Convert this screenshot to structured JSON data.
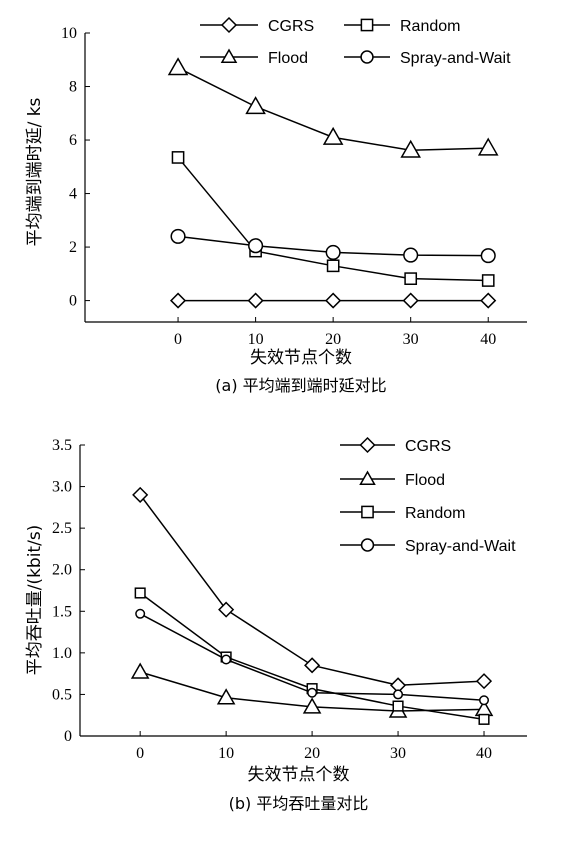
{
  "chart_data": [
    {
      "type": "line",
      "caption": "(a) 平均端到端时延对比",
      "xlabel": "失效节点个数",
      "ylabel": "平均端到端时延/ ks",
      "x": [
        0,
        10,
        20,
        30,
        40
      ],
      "xlim": [
        -12,
        45
      ],
      "ylim": [
        -0.8,
        10
      ],
      "yticks": [
        "0",
        "2",
        "4",
        "6",
        "8",
        "10"
      ],
      "xticks": [
        "0",
        "10",
        "20",
        "30",
        "40"
      ],
      "legend_placement": "top",
      "series": [
        {
          "name": "CGRS",
          "marker": "diamond",
          "values": [
            0,
            0,
            0,
            0,
            0
          ]
        },
        {
          "name": "Random",
          "marker": "square",
          "values": [
            5.35,
            1.85,
            1.3,
            0.82,
            0.75
          ]
        },
        {
          "name": "Flood",
          "marker": "triangle",
          "values": [
            8.7,
            7.25,
            6.1,
            5.62,
            5.7
          ]
        },
        {
          "name": "Spray-and-Wait",
          "marker": "circle",
          "values": [
            2.4,
            2.05,
            1.8,
            1.7,
            1.68
          ]
        }
      ]
    },
    {
      "type": "line",
      "caption": "(b) 平均吞吐量对比",
      "xlabel": "失效节点个数",
      "ylabel": "平均吞吐量/(kbit/s)",
      "x": [
        0,
        10,
        20,
        30,
        40
      ],
      "xlim": [
        -7,
        45
      ],
      "ylim": [
        0,
        3.5
      ],
      "yticks": [
        "0",
        "0.5",
        "1.0",
        "1.5",
        "2.0",
        "2.5",
        "3.0",
        "3.5"
      ],
      "xticks": [
        "0",
        "10",
        "20",
        "30",
        "40"
      ],
      "legend_placement": "top-right",
      "series": [
        {
          "name": "CGRS",
          "marker": "diamond",
          "values": [
            2.9,
            1.52,
            0.85,
            0.61,
            0.66
          ]
        },
        {
          "name": "Flood",
          "marker": "triangle",
          "values": [
            0.77,
            0.46,
            0.35,
            0.3,
            0.32
          ]
        },
        {
          "name": "Random",
          "marker": "square",
          "values": [
            1.72,
            0.95,
            0.57,
            0.36,
            0.2
          ]
        },
        {
          "name": "Spray-and-Wait",
          "marker": "circle",
          "values": [
            1.47,
            0.92,
            0.52,
            0.5,
            0.43
          ]
        }
      ]
    }
  ]
}
